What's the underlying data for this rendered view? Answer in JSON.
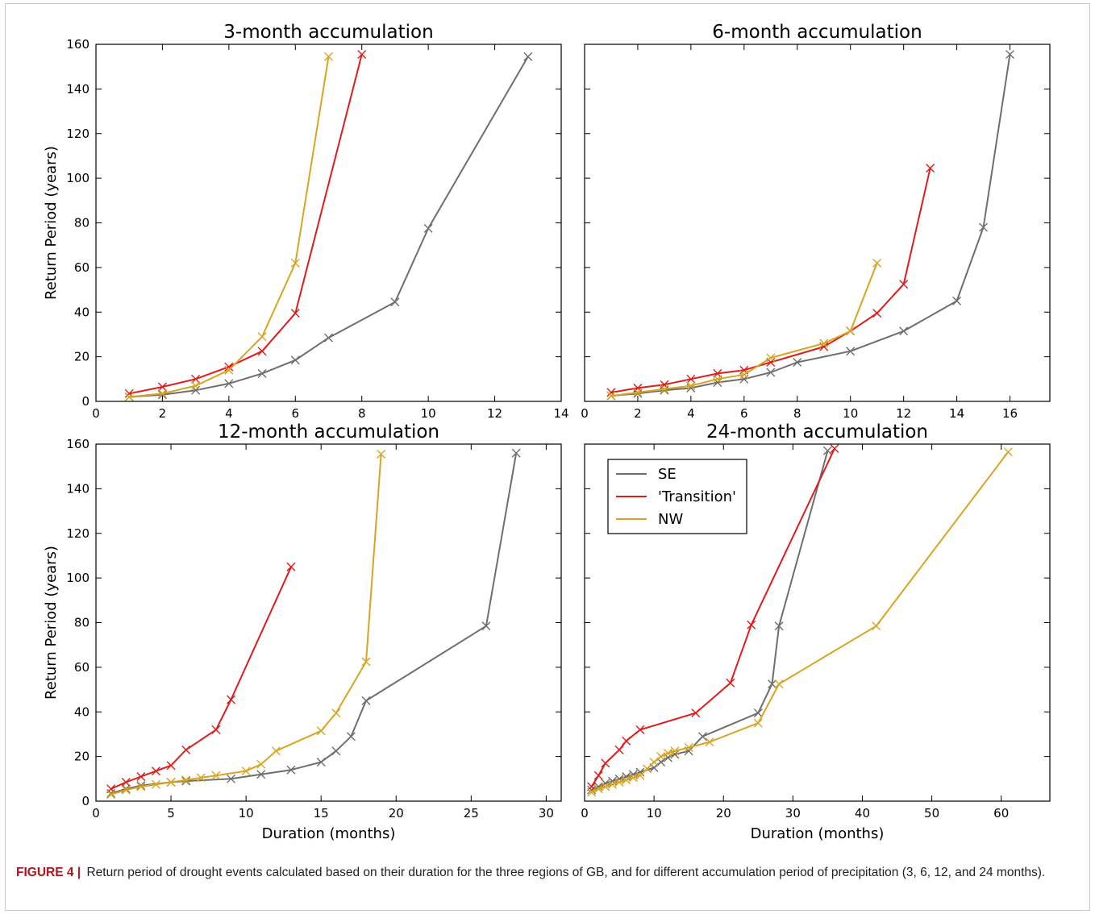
{
  "caption": {
    "label": "FIGURE 4",
    "separator": "|",
    "text": "Return period of drought events calculated based on their duration for the three regions of GB, and for different accumulation period of precipitation (3, 6, 12, and 24 months)."
  },
  "colors": {
    "SE": "#6e6e6e",
    "Transition": "#e01b1b",
    "NW": "#d9a520"
  },
  "legend": {
    "entries": [
      "SE",
      "'Transition'",
      "NW"
    ],
    "placement": "upper-left of 24-month panel"
  },
  "chart_data": [
    {
      "type": "line",
      "title": "3-month accumulation",
      "xlabel": "",
      "ylabel": "Return Period (years)",
      "xlim": [
        0,
        14
      ],
      "ylim": [
        0,
        160
      ],
      "xticks": [
        0,
        2,
        4,
        6,
        8,
        10,
        12,
        14
      ],
      "yticks": [
        0,
        20,
        40,
        60,
        80,
        100,
        120,
        140,
        160
      ],
      "marker": "x",
      "series": [
        {
          "name": "SE",
          "x": [
            1,
            2,
            3,
            4,
            5,
            6,
            7,
            9,
            10,
            13
          ],
          "y": [
            2,
            3,
            5,
            8,
            12.5,
            18.5,
            28.5,
            44.5,
            77.5,
            154.5
          ]
        },
        {
          "name": "'Transition'",
          "x": [
            1,
            2,
            3,
            4,
            5,
            6,
            8
          ],
          "y": [
            3.5,
            6.5,
            10,
            15.5,
            22.5,
            39.5,
            155.5
          ]
        },
        {
          "name": "NW",
          "x": [
            1,
            2,
            3,
            4,
            5,
            6,
            7
          ],
          "y": [
            2,
            3.5,
            7,
            14,
            29,
            62,
            154.5
          ]
        }
      ]
    },
    {
      "type": "line",
      "title": "6-month accumulation",
      "xlabel": "",
      "ylabel": "",
      "xlim": [
        0,
        17.5
      ],
      "ylim": [
        0,
        160
      ],
      "xticks": [
        0,
        2,
        4,
        6,
        8,
        10,
        12,
        14,
        16
      ],
      "yticks": [],
      "marker": "x",
      "series": [
        {
          "name": "SE",
          "x": [
            1,
            2,
            3,
            4,
            5,
            6,
            7,
            8,
            10,
            12,
            14,
            15,
            16
          ],
          "y": [
            2.5,
            3.5,
            5,
            6,
            8.5,
            10,
            13,
            17.5,
            22.5,
            31.5,
            45,
            78,
            155.5
          ]
        },
        {
          "name": "'Transition'",
          "x": [
            1,
            2,
            3,
            4,
            5,
            6,
            7,
            9,
            10,
            11,
            12,
            13
          ],
          "y": [
            4,
            6,
            7.5,
            10,
            12.5,
            14,
            17.5,
            24.5,
            31.5,
            39.5,
            52.5,
            104.5
          ]
        },
        {
          "name": "NW",
          "x": [
            1,
            2,
            3,
            4,
            5,
            6,
            7,
            9,
            10,
            11
          ],
          "y": [
            2.5,
            4,
            5.5,
            7,
            10,
            12,
            19.5,
            26,
            31.5,
            62
          ]
        }
      ]
    },
    {
      "type": "line",
      "title": "12-month accumulation",
      "xlabel": "Duration (months)",
      "ylabel": "Return Period (years)",
      "xlim": [
        0,
        31
      ],
      "ylim": [
        0,
        160
      ],
      "xticks": [
        0,
        5,
        10,
        15,
        20,
        25,
        30
      ],
      "yticks": [
        0,
        20,
        40,
        60,
        80,
        100,
        120,
        140,
        160
      ],
      "marker": "x",
      "series": [
        {
          "name": "SE",
          "x": [
            1,
            2,
            3,
            5,
            6,
            9,
            11,
            13,
            15,
            16,
            17,
            18,
            26,
            28
          ],
          "y": [
            3.5,
            5.5,
            7,
            8.5,
            9,
            10,
            12,
            14,
            17.5,
            22.5,
            29,
            45,
            78.5,
            156
          ]
        },
        {
          "name": "'Transition'",
          "x": [
            1,
            2,
            3,
            4,
            5,
            6,
            8,
            9,
            13
          ],
          "y": [
            5.5,
            8.5,
            11,
            13.5,
            16,
            23,
            32,
            45.5,
            105
          ]
        },
        {
          "name": "NW",
          "x": [
            1,
            2,
            3,
            4,
            5,
            6,
            7,
            8,
            10,
            11,
            12,
            15,
            16,
            18,
            19
          ],
          "y": [
            3,
            5,
            6.5,
            7.5,
            8.5,
            9.5,
            10.5,
            11.5,
            13.5,
            16.5,
            22.5,
            31.5,
            39.5,
            62.5,
            155.5
          ]
        }
      ]
    },
    {
      "type": "line",
      "title": "24-month accumulation",
      "xlabel": "Duration (months)",
      "ylabel": "",
      "xlim": [
        0,
        67
      ],
      "ylim": [
        0,
        160
      ],
      "xticks": [
        0,
        10,
        20,
        30,
        40,
        50,
        60
      ],
      "yticks": [],
      "marker": "x",
      "series": [
        {
          "name": "SE",
          "x": [
            1,
            2,
            3,
            4,
            5,
            6,
            7,
            8,
            10,
            11,
            12,
            13,
            15,
            17,
            25,
            27,
            28,
            35
          ],
          "y": [
            5,
            6.5,
            8,
            9,
            10,
            11,
            12,
            13,
            15,
            17.5,
            19.5,
            21,
            22.5,
            29,
            39.5,
            52.5,
            78.5,
            157
          ]
        },
        {
          "name": "'Transition'",
          "x": [
            1,
            2,
            3,
            5,
            6,
            8,
            16,
            21,
            24,
            36
          ],
          "y": [
            6.5,
            11.5,
            17,
            23,
            27,
            32,
            39.5,
            53,
            79,
            158
          ]
        },
        {
          "name": "NW",
          "x": [
            1,
            2,
            3,
            4,
            5,
            6,
            7,
            8,
            9,
            10,
            11,
            12,
            13,
            15,
            18,
            25,
            28,
            42,
            61
          ],
          "y": [
            4,
            5.5,
            6.5,
            7.5,
            8.5,
            9.5,
            10.5,
            11.5,
            14.5,
            17.5,
            20,
            21.5,
            22.5,
            24,
            26.5,
            35,
            52.5,
            78.5,
            156.5
          ]
        }
      ]
    }
  ]
}
